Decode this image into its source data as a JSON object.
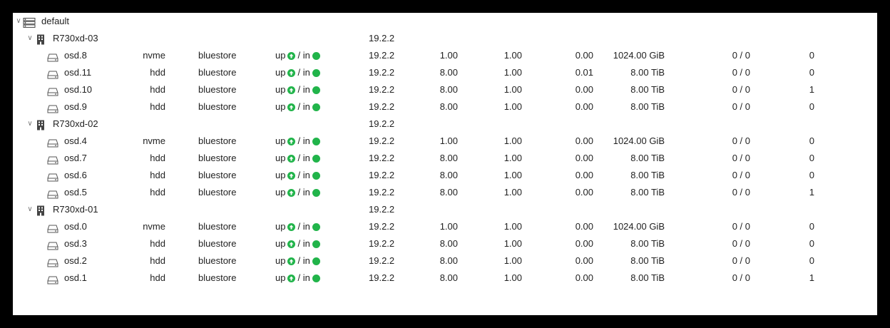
{
  "tree": {
    "root": {
      "label": "default"
    },
    "hosts": [
      {
        "name": "R730xd-03",
        "version": "19.2.2",
        "osds": [
          {
            "name": "osd.8",
            "class": "nvme",
            "store": "bluestore",
            "up": "up",
            "in": "/ in",
            "version": "19.2.2",
            "weight": "1.00",
            "reweight": "1.00",
            "used": "0.00",
            "size": "1024.00 GiB",
            "latency": "0 / 0",
            "pgs": "0"
          },
          {
            "name": "osd.11",
            "class": "hdd",
            "store": "bluestore",
            "up": "up",
            "in": "/ in",
            "version": "19.2.2",
            "weight": "8.00",
            "reweight": "1.00",
            "used": "0.01",
            "size": "8.00 TiB",
            "latency": "0 / 0",
            "pgs": "0"
          },
          {
            "name": "osd.10",
            "class": "hdd",
            "store": "bluestore",
            "up": "up",
            "in": "/ in",
            "version": "19.2.2",
            "weight": "8.00",
            "reweight": "1.00",
            "used": "0.00",
            "size": "8.00 TiB",
            "latency": "0 / 0",
            "pgs": "1"
          },
          {
            "name": "osd.9",
            "class": "hdd",
            "store": "bluestore",
            "up": "up",
            "in": "/ in",
            "version": "19.2.2",
            "weight": "8.00",
            "reweight": "1.00",
            "used": "0.00",
            "size": "8.00 TiB",
            "latency": "0 / 0",
            "pgs": "0"
          }
        ]
      },
      {
        "name": "R730xd-02",
        "version": "19.2.2",
        "osds": [
          {
            "name": "osd.4",
            "class": "nvme",
            "store": "bluestore",
            "up": "up",
            "in": "/ in",
            "version": "19.2.2",
            "weight": "1.00",
            "reweight": "1.00",
            "used": "0.00",
            "size": "1024.00 GiB",
            "latency": "0 / 0",
            "pgs": "0"
          },
          {
            "name": "osd.7",
            "class": "hdd",
            "store": "bluestore",
            "up": "up",
            "in": "/ in",
            "version": "19.2.2",
            "weight": "8.00",
            "reweight": "1.00",
            "used": "0.00",
            "size": "8.00 TiB",
            "latency": "0 / 0",
            "pgs": "0"
          },
          {
            "name": "osd.6",
            "class": "hdd",
            "store": "bluestore",
            "up": "up",
            "in": "/ in",
            "version": "19.2.2",
            "weight": "8.00",
            "reweight": "1.00",
            "used": "0.00",
            "size": "8.00 TiB",
            "latency": "0 / 0",
            "pgs": "0"
          },
          {
            "name": "osd.5",
            "class": "hdd",
            "store": "bluestore",
            "up": "up",
            "in": "/ in",
            "version": "19.2.2",
            "weight": "8.00",
            "reweight": "1.00",
            "used": "0.00",
            "size": "8.00 TiB",
            "latency": "0 / 0",
            "pgs": "1"
          }
        ]
      },
      {
        "name": "R730xd-01",
        "version": "19.2.2",
        "osds": [
          {
            "name": "osd.0",
            "class": "nvme",
            "store": "bluestore",
            "up": "up",
            "in": "/ in",
            "version": "19.2.2",
            "weight": "1.00",
            "reweight": "1.00",
            "used": "0.00",
            "size": "1024.00 GiB",
            "latency": "0 / 0",
            "pgs": "0"
          },
          {
            "name": "osd.3",
            "class": "hdd",
            "store": "bluestore",
            "up": "up",
            "in": "/ in",
            "version": "19.2.2",
            "weight": "8.00",
            "reweight": "1.00",
            "used": "0.00",
            "size": "8.00 TiB",
            "latency": "0 / 0",
            "pgs": "0"
          },
          {
            "name": "osd.2",
            "class": "hdd",
            "store": "bluestore",
            "up": "up",
            "in": "/ in",
            "version": "19.2.2",
            "weight": "8.00",
            "reweight": "1.00",
            "used": "0.00",
            "size": "8.00 TiB",
            "latency": "0 / 0",
            "pgs": "0"
          },
          {
            "name": "osd.1",
            "class": "hdd",
            "store": "bluestore",
            "up": "up",
            "in": "/ in",
            "version": "19.2.2",
            "weight": "8.00",
            "reweight": "1.00",
            "used": "0.00",
            "size": "8.00 TiB",
            "latency": "0 / 0",
            "pgs": "1"
          }
        ]
      }
    ]
  },
  "icons": {
    "root": "server-stack-icon",
    "host": "building-icon",
    "osd": "hard-drive-icon",
    "up": "arrow-up-circle-icon",
    "in": "green-dot-icon"
  },
  "colors": {
    "status_green": "#21b44a",
    "background": "#000000",
    "panel": "#ffffff"
  }
}
